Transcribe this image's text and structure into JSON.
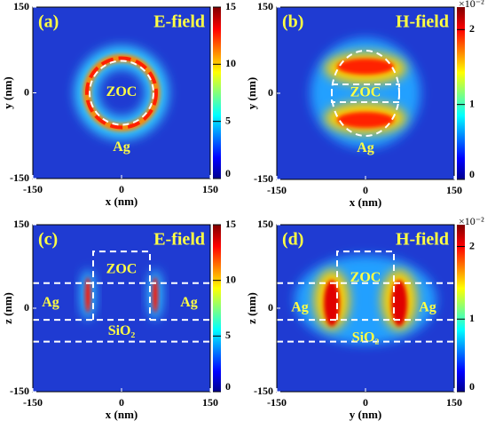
{
  "chart_data": [
    {
      "type": "heatmap",
      "label": "(a)",
      "title": "E-field",
      "xlabel": "x (nm)",
      "ylabel": "y (nm)",
      "xlim": [
        -150,
        150
      ],
      "xticks": [
        -150,
        0,
        150
      ],
      "ylim": [
        -150,
        150
      ],
      "yticks": [
        -150,
        0,
        150
      ],
      "colorbar": {
        "lim": [
          0,
          15
        ],
        "ticks": [
          0,
          5,
          10,
          15
        ]
      },
      "annotations": [
        "ZOC",
        "Ag"
      ]
    },
    {
      "type": "heatmap",
      "label": "(b)",
      "title": "H-field",
      "xlabel": "x (nm)",
      "ylabel": "y (nm)",
      "xlim": [
        -150,
        150
      ],
      "xticks": [
        -150,
        0,
        150
      ],
      "ylim": [
        -150,
        150
      ],
      "yticks": [
        -150,
        0,
        150
      ],
      "colorbar": {
        "lim": [
          0,
          2.3
        ],
        "ticks": [
          0,
          1,
          2
        ],
        "label": "×10⁻²"
      },
      "annotations": [
        "ZOC",
        "Ag"
      ]
    },
    {
      "type": "heatmap",
      "label": "(c)",
      "title": "E-field",
      "xlabel": "x (nm)",
      "ylabel": "z (nm)",
      "xlim": [
        -150,
        150
      ],
      "xticks": [
        -150,
        0,
        150
      ],
      "ylim": [
        -150,
        150
      ],
      "yticks": [
        -150,
        0,
        150
      ],
      "colorbar": {
        "lim": [
          0,
          15
        ],
        "ticks": [
          0,
          5,
          10,
          15
        ]
      },
      "annotations": [
        "ZOC",
        "Ag",
        "Ag",
        "SiO₂"
      ]
    },
    {
      "type": "heatmap",
      "label": "(d)",
      "title": "H-field",
      "xlabel": "y (nm)",
      "ylabel": "z (nm)",
      "xlim": [
        -150,
        150
      ],
      "xticks": [
        -150,
        0,
        150
      ],
      "ylim": [
        -150,
        150
      ],
      "yticks": [
        -150,
        0,
        150
      ],
      "colorbar": {
        "lim": [
          0,
          2.3
        ],
        "ticks": [
          0,
          1,
          2
        ],
        "label": "×10⁻²"
      },
      "annotations": [
        "ZOC",
        "Ag",
        "Ag",
        "SiO₂"
      ]
    }
  ]
}
